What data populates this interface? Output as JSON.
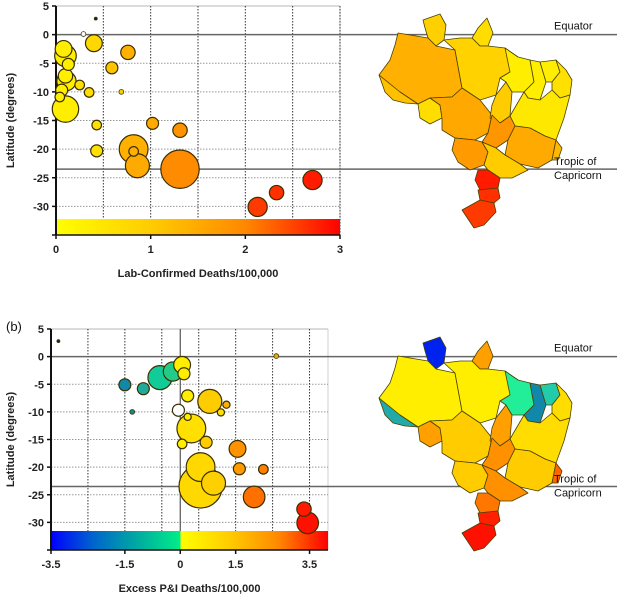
{
  "chart_data": [
    {
      "type": "scatter",
      "panel_label": "",
      "title": "",
      "xlabel": "Lab-Confirmed Deaths/100,000",
      "ylabel": "Latitude (degrees)",
      "xlim": [
        0,
        3
      ],
      "ylim": [
        -35,
        5
      ],
      "x_ticks": [
        "0",
        "1",
        "2",
        "3"
      ],
      "x_tick_values": [
        0,
        1,
        2,
        3
      ],
      "x_grid_values": [
        0.5,
        1,
        1.5,
        2,
        2.5,
        3
      ],
      "y_ticks": [
        "5",
        "0",
        "-5",
        "-10",
        "-15",
        "-20",
        "-25",
        "-30"
      ],
      "y_tick_values": [
        5,
        0,
        -5,
        -10,
        -15,
        -20,
        -25,
        -30
      ],
      "reference_lines": [
        {
          "name": "Equator",
          "lat": 0
        },
        {
          "name": "Tropic of Capricorn",
          "lat": -23.5
        }
      ],
      "colorbar": {
        "range": [
          0,
          3
        ],
        "stops": [
          "#ffff00",
          "#ffcc00",
          "#ff8800",
          "#ff0000"
        ]
      },
      "size_encoding": "bubble area scales with state population",
      "points": [
        {
          "x": 0.42,
          "y": 2.8,
          "size": 1,
          "color": "#222222"
        },
        {
          "x": 0.29,
          "y": 0.1,
          "size": 2,
          "color": "#ffffff"
        },
        {
          "x": 0.08,
          "y": -2.5,
          "size": 7,
          "color": "#ffee00"
        },
        {
          "x": 0.1,
          "y": -3.7,
          "size": 9,
          "color": "#ffee00"
        },
        {
          "x": 0.13,
          "y": -5.2,
          "size": 5,
          "color": "#ffee00"
        },
        {
          "x": 0.4,
          "y": -1.5,
          "size": 7,
          "color": "#ffd800"
        },
        {
          "x": 0.76,
          "y": -3.1,
          "size": 6,
          "color": "#ffb000"
        },
        {
          "x": 0.59,
          "y": -5.8,
          "size": 5,
          "color": "#ffc400"
        },
        {
          "x": 0.1,
          "y": -7.2,
          "size": 6,
          "color": "#ffee00"
        },
        {
          "x": 0.11,
          "y": -8.1,
          "size": 8,
          "color": "#ffee00"
        },
        {
          "x": 0.25,
          "y": -8.8,
          "size": 4,
          "color": "#ffe000"
        },
        {
          "x": 0.06,
          "y": -9.7,
          "size": 5,
          "color": "#ffee00"
        },
        {
          "x": 0.35,
          "y": -10.1,
          "size": 4,
          "color": "#ffdd00"
        },
        {
          "x": 0.69,
          "y": -10.0,
          "size": 2,
          "color": "#ffd000"
        },
        {
          "x": 0.04,
          "y": -10.9,
          "size": 4,
          "color": "#ffee00"
        },
        {
          "x": 0.1,
          "y": -13.0,
          "size": 11,
          "color": "#ffee00"
        },
        {
          "x": 0.43,
          "y": -15.8,
          "size": 4,
          "color": "#ffe000"
        },
        {
          "x": 1.02,
          "y": -15.5,
          "size": 5,
          "color": "#ffaa00"
        },
        {
          "x": 1.31,
          "y": -16.7,
          "size": 6,
          "color": "#ff9200"
        },
        {
          "x": 0.43,
          "y": -20.3,
          "size": 5,
          "color": "#ffe000"
        },
        {
          "x": 0.82,
          "y": -20.0,
          "size": 12,
          "color": "#ffb000"
        },
        {
          "x": 0.82,
          "y": -20.4,
          "size": 4,
          "color": "#ffb000"
        },
        {
          "x": 0.86,
          "y": -22.9,
          "size": 10,
          "color": "#ffaa00"
        },
        {
          "x": 1.31,
          "y": -23.5,
          "size": 16,
          "color": "#ff8c00"
        },
        {
          "x": 2.71,
          "y": -25.4,
          "size": 8,
          "color": "#ff1a00"
        },
        {
          "x": 2.33,
          "y": -27.6,
          "size": 6,
          "color": "#ff3000"
        },
        {
          "x": 2.13,
          "y": -30.1,
          "size": 8,
          "color": "#ff3a00"
        }
      ],
      "map": {
        "labels": {
          "equator": "Equator",
          "tropic_line1": "Tropic of",
          "tropic_line2": "Capricorn"
        },
        "regions": [
          {
            "name": "Roraima",
            "color": "#ffd000"
          },
          {
            "name": "Amapa",
            "color": "#ffdd00"
          },
          {
            "name": "Amazonas",
            "color": "#ffb000"
          },
          {
            "name": "Para",
            "color": "#ffd200"
          },
          {
            "name": "Acre",
            "color": "#ffc000"
          },
          {
            "name": "Rondonia",
            "color": "#ffdd00"
          },
          {
            "name": "Mato Grosso",
            "color": "#ffa800"
          },
          {
            "name": "Tocantins",
            "color": "#ffcc00"
          },
          {
            "name": "Maranhao",
            "color": "#ffee00"
          },
          {
            "name": "Piaui",
            "color": "#ffee00"
          },
          {
            "name": "Ceara",
            "color": "#ffee00"
          },
          {
            "name": "Northeast coast",
            "color": "#ffe000"
          },
          {
            "name": "Bahia",
            "color": "#ffe800"
          },
          {
            "name": "Goias",
            "color": "#ff9600"
          },
          {
            "name": "Minas Gerais",
            "color": "#ffaa00"
          },
          {
            "name": "Mato Grosso do Sul",
            "color": "#ffb800"
          },
          {
            "name": "Sao Paulo",
            "color": "#ff9a00"
          },
          {
            "name": "Espirito Santo",
            "color": "#ffcc00"
          },
          {
            "name": "Parana",
            "color": "#ff1a00"
          },
          {
            "name": "Santa Catarina",
            "color": "#ff3000"
          },
          {
            "name": "Rio Grande do Sul",
            "color": "#ff3a00"
          }
        ]
      }
    },
    {
      "type": "scatter",
      "panel_label": "(b)",
      "title": "",
      "xlabel": "Excess P&I Deaths/100,000",
      "ylabel": "Latitude (degrees)",
      "xlim": [
        -3.5,
        4.0
      ],
      "ylim": [
        -35,
        5
      ],
      "x_ticks": [
        "-3.5",
        "-1.5",
        "0",
        "1.5",
        "3.5"
      ],
      "x_tick_values": [
        -3.5,
        -1.5,
        0,
        1.5,
        3.5
      ],
      "x_grid_values": [
        -2.5,
        -1.5,
        -0.5,
        0.5,
        1.5,
        2.5,
        3.5
      ],
      "x_zero_line": 0,
      "y_ticks": [
        "5",
        "0",
        "-5",
        "-10",
        "-15",
        "-20",
        "-25",
        "-30"
      ],
      "y_tick_values": [
        5,
        0,
        -5,
        -10,
        -15,
        -20,
        -25,
        -30
      ],
      "reference_lines": [
        {
          "name": "Equator",
          "lat": 0
        },
        {
          "name": "Tropic of Capricorn",
          "lat": -23.5
        }
      ],
      "colorbar": {
        "range": [
          -3.5,
          4.0
        ],
        "negative_stops": [
          "#0000ff",
          "#0066cc",
          "#00aaa0",
          "#00ee88"
        ],
        "positive_stops": [
          "#ffff00",
          "#ffcc00",
          "#ff8800",
          "#ff0000"
        ]
      },
      "points": [
        {
          "x": -3.3,
          "y": 2.8,
          "size": 1,
          "color": "#222222"
        },
        {
          "x": 2.6,
          "y": 0.1,
          "size": 2,
          "color": "#e0b000"
        },
        {
          "x": 0.05,
          "y": -1.5,
          "size": 7,
          "color": "#ffee00"
        },
        {
          "x": 0.1,
          "y": -3.1,
          "size": 5,
          "color": "#ffee00"
        },
        {
          "x": -0.2,
          "y": -2.7,
          "size": 8,
          "color": "#22cc88"
        },
        {
          "x": -0.55,
          "y": -3.8,
          "size": 10,
          "color": "#11cc99"
        },
        {
          "x": -1.5,
          "y": -5.1,
          "size": 5,
          "color": "#1188aa"
        },
        {
          "x": -1.0,
          "y": -5.8,
          "size": 5,
          "color": "#22aa99"
        },
        {
          "x": -1.3,
          "y": -10.0,
          "size": 2,
          "color": "#118899"
        },
        {
          "x": 0.2,
          "y": -7.1,
          "size": 5,
          "color": "#ffee00"
        },
        {
          "x": 0.8,
          "y": -8.1,
          "size": 10,
          "color": "#ffcc00"
        },
        {
          "x": 1.25,
          "y": -8.7,
          "size": 3,
          "color": "#ffb000"
        },
        {
          "x": -0.05,
          "y": -9.7,
          "size": 5,
          "color": "#ffffff"
        },
        {
          "x": 1.1,
          "y": -10.1,
          "size": 3,
          "color": "#ffe000"
        },
        {
          "x": 0.2,
          "y": -10.9,
          "size": 3,
          "color": "#ffee00"
        },
        {
          "x": 0.3,
          "y": -13.0,
          "size": 12,
          "color": "#ffe000"
        },
        {
          "x": 0.05,
          "y": -15.8,
          "size": 4,
          "color": "#ffee00"
        },
        {
          "x": 0.7,
          "y": -15.5,
          "size": 5,
          "color": "#ffcc00"
        },
        {
          "x": 1.55,
          "y": -16.7,
          "size": 7,
          "color": "#ff9200"
        },
        {
          "x": 0.55,
          "y": -20.0,
          "size": 12,
          "color": "#ffd800"
        },
        {
          "x": 1.6,
          "y": -20.3,
          "size": 5,
          "color": "#ff9a00"
        },
        {
          "x": 2.25,
          "y": -20.4,
          "size": 4,
          "color": "#ff8000"
        },
        {
          "x": 0.9,
          "y": -22.9,
          "size": 10,
          "color": "#ffd000"
        },
        {
          "x": 0.55,
          "y": -23.5,
          "size": 18,
          "color": "#ffd800"
        },
        {
          "x": 2.0,
          "y": -25.4,
          "size": 9,
          "color": "#ff7000"
        },
        {
          "x": 3.35,
          "y": -27.6,
          "size": 6,
          "color": "#ff1a00"
        },
        {
          "x": 3.45,
          "y": -30.1,
          "size": 9,
          "color": "#ff1000"
        }
      ],
      "map": {
        "labels": {
          "equator": "Equator",
          "tropic_line1": "Tropic of",
          "tropic_line2": "Capricorn"
        },
        "regions": [
          {
            "name": "Roraima",
            "color": "#0022ee"
          },
          {
            "name": "Amapa",
            "color": "#ffa000"
          },
          {
            "name": "Amazonas",
            "color": "#ffee00"
          },
          {
            "name": "Para",
            "color": "#ffee00"
          },
          {
            "name": "Acre",
            "color": "#22aaaa"
          },
          {
            "name": "Rondonia",
            "color": "#ffa000"
          },
          {
            "name": "Mato Grosso",
            "color": "#ffcc00"
          },
          {
            "name": "Tocantins",
            "color": "#ffa000"
          },
          {
            "name": "Maranhao",
            "color": "#22ee99"
          },
          {
            "name": "Piaui",
            "color": "#1188aa"
          },
          {
            "name": "Ceara",
            "color": "#22ccaa"
          },
          {
            "name": "Northeast coast",
            "color": "#ffdd00"
          },
          {
            "name": "Bahia",
            "color": "#ffdd00"
          },
          {
            "name": "Goias",
            "color": "#ff9000"
          },
          {
            "name": "Minas Gerais",
            "color": "#ffcc00"
          },
          {
            "name": "Mato Grosso do Sul",
            "color": "#ff6600"
          },
          {
            "name": "Sao Paulo",
            "color": "#ffcc00"
          },
          {
            "name": "Espirito Santo",
            "color": "#ff9000"
          },
          {
            "name": "Parana",
            "color": "#ff7700"
          },
          {
            "name": "Santa Catarina",
            "color": "#ff2000"
          },
          {
            "name": "Rio Grande do Sul",
            "color": "#ff1000"
          }
        ]
      }
    }
  ]
}
